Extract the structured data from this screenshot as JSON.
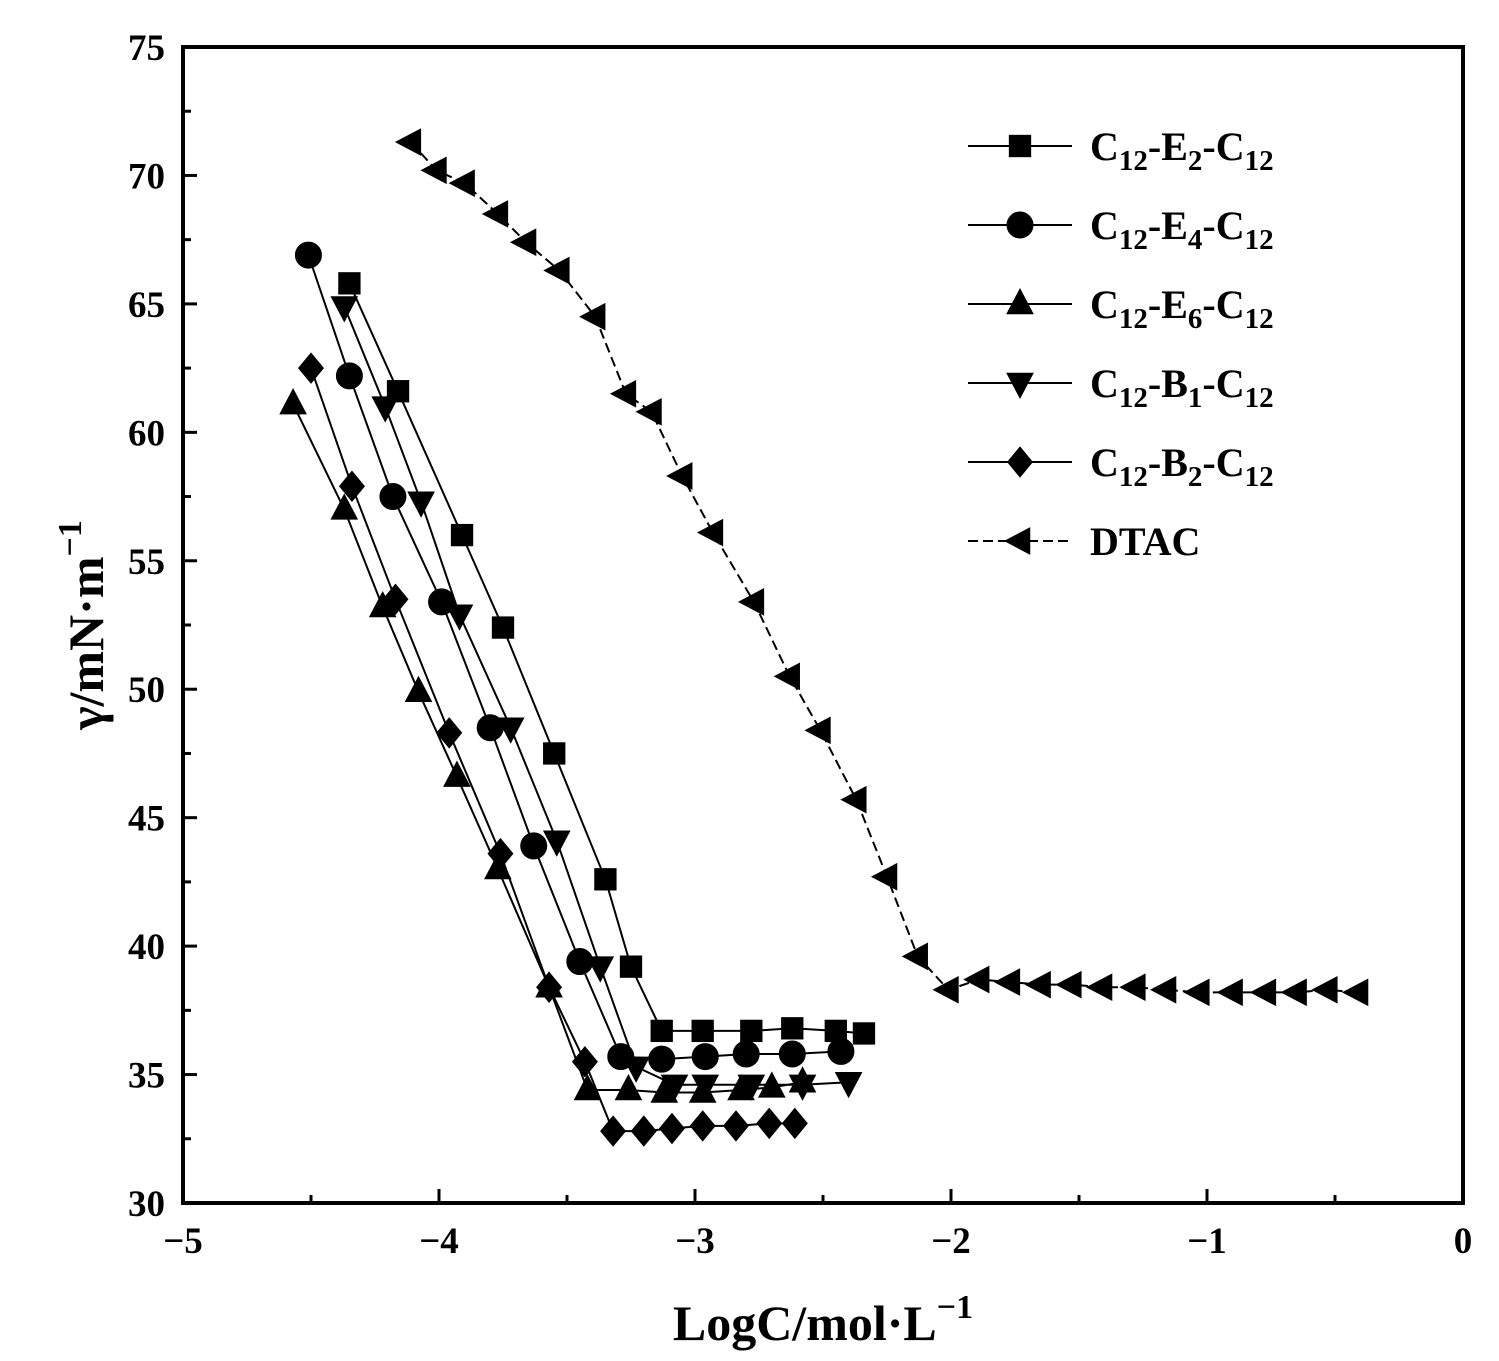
{
  "chart_data": {
    "type": "scatter",
    "xlabel": {
      "main": "LogC/mol·L",
      "sup": "−1"
    },
    "ylabel": {
      "main": "γ/mN·m",
      "sup": "−1"
    },
    "xlim": [
      -5,
      0
    ],
    "ylim": [
      30,
      75
    ],
    "xticks": [
      -5,
      -4,
      -3,
      -2,
      -1,
      0
    ],
    "xtick_labels": [
      "−5",
      "−4",
      "−3",
      "−2",
      "−1",
      "0"
    ],
    "yticks": [
      30,
      35,
      40,
      45,
      50,
      55,
      60,
      65,
      70,
      75
    ],
    "ytick_labels": [
      "30",
      "35",
      "40",
      "45",
      "50",
      "55",
      "60",
      "65",
      "70",
      "75"
    ],
    "legend_position": "top-right",
    "series": [
      {
        "name": "C12-E2-C12",
        "legend": {
          "a": "C",
          "a_sub": "12",
          "b": "-E",
          "b_sub": "2",
          "c": "-C",
          "c_sub": "12"
        },
        "marker": "square",
        "x": [
          -4.35,
          -4.16,
          -3.91,
          -3.75,
          -3.55,
          -3.35,
          -3.25,
          -3.13,
          -2.97,
          -2.78,
          -2.62,
          -2.45,
          -2.34
        ],
        "y": [
          65.8,
          61.6,
          56.0,
          52.4,
          47.5,
          42.6,
          39.2,
          36.7,
          36.7,
          36.7,
          36.8,
          36.7,
          36.6
        ]
      },
      {
        "name": "C12-E4-C12",
        "legend": {
          "a": "C",
          "a_sub": "12",
          "b": "-E",
          "b_sub": "4",
          "c": "-C",
          "c_sub": "12"
        },
        "marker": "circle",
        "x": [
          -4.51,
          -4.35,
          -4.18,
          -3.99,
          -3.8,
          -3.63,
          -3.45,
          -3.29,
          -3.13,
          -2.96,
          -2.8,
          -2.62,
          -2.43
        ],
        "y": [
          66.9,
          62.2,
          57.5,
          53.4,
          48.5,
          43.9,
          39.4,
          35.7,
          35.6,
          35.7,
          35.8,
          35.8,
          35.9
        ]
      },
      {
        "name": "C12-E6-C12",
        "legend": {
          "a": "C",
          "a_sub": "12",
          "b": "-E",
          "b_sub": "6",
          "c": "-C",
          "c_sub": "12"
        },
        "marker": "triangle-up",
        "x": [
          -4.57,
          -4.37,
          -4.22,
          -4.08,
          -3.93,
          -3.77,
          -3.57,
          -3.42,
          -3.26,
          -3.12,
          -2.97,
          -2.82,
          -2.7,
          -2.58
        ],
        "y": [
          61.1,
          57.0,
          53.2,
          49.9,
          46.6,
          43.0,
          38.4,
          34.4,
          34.4,
          34.3,
          34.3,
          34.4,
          34.5,
          34.7
        ]
      },
      {
        "name": "C12-B1-C12",
        "legend": {
          "a": "C",
          "a_sub": "12",
          "b": "-B",
          "b_sub": "1",
          "c": "-C",
          "c_sub": "12"
        },
        "marker": "triangle-down",
        "x": [
          -4.37,
          -4.21,
          -4.07,
          -3.92,
          -3.72,
          -3.54,
          -3.37,
          -3.23,
          -3.08,
          -2.96,
          -2.78,
          -2.58,
          -2.4
        ],
        "y": [
          64.9,
          61.0,
          57.3,
          52.9,
          48.5,
          44.1,
          39.2,
          35.3,
          34.6,
          34.6,
          34.6,
          34.6,
          34.7
        ]
      },
      {
        "name": "C12-B2-C12",
        "legend": {
          "a": "C",
          "a_sub": "12",
          "b": "-B",
          "b_sub": "2",
          "c": "-C",
          "c_sub": "12"
        },
        "marker": "diamond",
        "x": [
          -4.5,
          -4.34,
          -4.17,
          -3.96,
          -3.76,
          -3.57,
          -3.43,
          -3.32,
          -3.2,
          -3.09,
          -2.97,
          -2.84,
          -2.71,
          -2.61
        ],
        "y": [
          62.5,
          57.9,
          53.5,
          48.3,
          43.6,
          38.4,
          35.5,
          32.8,
          32.8,
          32.9,
          33.0,
          33.0,
          33.1,
          33.1
        ]
      },
      {
        "name": "DTAC",
        "legend": {
          "a": "DTAC",
          "a_sub": "",
          "b": "",
          "b_sub": "",
          "c": "",
          "c_sub": ""
        },
        "marker": "triangle-left",
        "x": [
          -4.11,
          -4.01,
          -3.9,
          -3.77,
          -3.66,
          -3.53,
          -3.39,
          -3.27,
          -3.17,
          -3.05,
          -2.93,
          -2.77,
          -2.63,
          -2.51,
          -2.37,
          -2.25,
          -2.13,
          -2.01,
          -1.89,
          -1.77,
          -1.65,
          -1.53,
          -1.41,
          -1.28,
          -1.16,
          -1.03,
          -0.9,
          -0.77,
          -0.65,
          -0.53,
          -0.41
        ],
        "y": [
          71.3,
          70.2,
          69.7,
          68.5,
          67.4,
          66.3,
          64.5,
          61.5,
          60.8,
          58.3,
          56.1,
          53.4,
          50.5,
          48.4,
          45.7,
          42.7,
          39.6,
          38.3,
          38.7,
          38.6,
          38.5,
          38.5,
          38.4,
          38.4,
          38.3,
          38.2,
          38.2,
          38.2,
          38.2,
          38.3,
          38.2
        ]
      }
    ]
  }
}
